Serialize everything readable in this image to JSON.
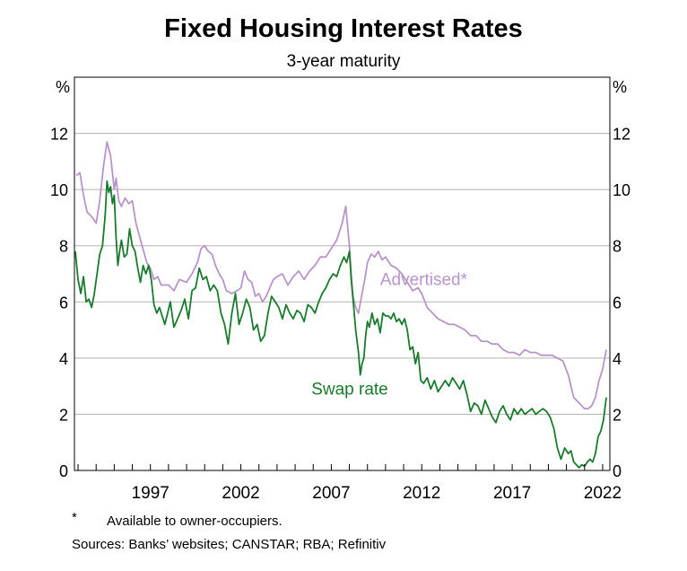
{
  "chart_data": {
    "type": "line",
    "title": "Fixed Housing Interest Rates",
    "subtitle": "3-year maturity",
    "ylabel_left": "%",
    "ylabel_right": "%",
    "ylim": [
      0,
      14
    ],
    "yticks": [
      0,
      2,
      4,
      6,
      8,
      10,
      12
    ],
    "xlim": [
      1992.8,
      2022.4
    ],
    "xticks": [
      1997,
      2002,
      2007,
      2012,
      2017,
      2022
    ],
    "grid": true,
    "colors": {
      "advertised": "#b895c9",
      "swap": "#1a7a2e",
      "grid": "#b3b3b3"
    },
    "series": [
      {
        "name": "Advertised*",
        "color": "#b895c9",
        "x": [
          1992.9,
          1993.1,
          1993.3,
          1993.5,
          1993.8,
          1994.0,
          1994.2,
          1994.4,
          1994.6,
          1994.8,
          1995.0,
          1995.1,
          1995.25,
          1995.4,
          1995.6,
          1995.8,
          1996.0,
          1996.2,
          1996.5,
          1996.8,
          1997.0,
          1997.2,
          1997.4,
          1997.6,
          1997.8,
          1998.0,
          1998.3,
          1998.6,
          1999.0,
          1999.3,
          1999.6,
          1999.8,
          2000.0,
          2000.2,
          2000.4,
          2000.6,
          2000.8,
          2001.0,
          2001.2,
          2001.5,
          2001.8,
          2002.0,
          2002.2,
          2002.4,
          2002.6,
          2002.8,
          2003.0,
          2003.2,
          2003.4,
          2003.6,
          2003.8,
          2004.0,
          2004.3,
          2004.6,
          2004.9,
          2005.2,
          2005.5,
          2005.8,
          2006.1,
          2006.4,
          2006.7,
          2007.0,
          2007.3,
          2007.6,
          2007.8,
          2008.0,
          2008.1,
          2008.2,
          2008.35,
          2008.5,
          2008.7,
          2008.85,
          2009.0,
          2009.2,
          2009.4,
          2009.6,
          2009.8,
          2010.0,
          2010.3,
          2010.6,
          2010.9,
          2011.2,
          2011.5,
          2011.8,
          2012.0,
          2012.3,
          2012.6,
          2012.9,
          2013.2,
          2013.5,
          2013.8,
          2014.1,
          2014.4,
          2014.7,
          2015.0,
          2015.3,
          2015.6,
          2015.9,
          2016.2,
          2016.5,
          2016.8,
          2017.1,
          2017.4,
          2017.7,
          2018.0,
          2018.3,
          2018.6,
          2018.9,
          2019.2,
          2019.5,
          2019.8,
          2020.1,
          2020.4,
          2020.7,
          2021.0,
          2021.2,
          2021.4,
          2021.6,
          2021.8,
          2022.0,
          2022.2
        ],
        "values": [
          10.5,
          10.6,
          9.8,
          9.2,
          9.0,
          8.8,
          9.6,
          10.8,
          11.7,
          11.2,
          10.0,
          10.4,
          9.6,
          9.4,
          9.7,
          9.5,
          9.6,
          8.8,
          8.1,
          7.4,
          7.2,
          6.8,
          6.9,
          6.6,
          6.6,
          6.6,
          6.4,
          6.8,
          6.7,
          7.0,
          7.4,
          7.9,
          8.0,
          7.8,
          7.7,
          7.3,
          7.0,
          6.8,
          6.4,
          6.3,
          6.4,
          6.5,
          7.1,
          6.8,
          6.7,
          6.2,
          6.3,
          6.0,
          6.2,
          6.5,
          6.8,
          6.9,
          7.0,
          6.6,
          6.9,
          7.1,
          6.8,
          7.1,
          7.3,
          7.6,
          7.6,
          7.9,
          8.2,
          8.8,
          9.4,
          8.0,
          7.0,
          6.2,
          5.8,
          5.6,
          6.3,
          6.8,
          7.4,
          7.7,
          7.6,
          7.8,
          7.5,
          7.6,
          7.3,
          7.2,
          7.0,
          6.7,
          6.4,
          6.5,
          6.3,
          5.8,
          5.6,
          5.4,
          5.3,
          5.2,
          5.2,
          5.1,
          5.0,
          4.8,
          4.8,
          4.6,
          4.6,
          4.5,
          4.5,
          4.3,
          4.2,
          4.2,
          4.1,
          4.3,
          4.2,
          4.2,
          4.1,
          4.1,
          4.1,
          4.0,
          3.9,
          3.4,
          2.6,
          2.4,
          2.2,
          2.2,
          2.3,
          2.6,
          3.2,
          3.6,
          4.3
        ]
      },
      {
        "name": "Swap rate",
        "color": "#1a7a2e",
        "x": [
          1992.85,
          1993.0,
          1993.15,
          1993.3,
          1993.45,
          1993.6,
          1993.75,
          1993.9,
          1994.05,
          1994.2,
          1994.35,
          1994.5,
          1994.6,
          1994.7,
          1994.8,
          1994.9,
          1995.0,
          1995.1,
          1995.2,
          1995.3,
          1995.4,
          1995.55,
          1995.7,
          1995.85,
          1996.0,
          1996.15,
          1996.3,
          1996.45,
          1996.6,
          1996.75,
          1996.9,
          1997.05,
          1997.2,
          1997.35,
          1997.5,
          1997.65,
          1997.8,
          1997.95,
          1998.1,
          1998.3,
          1998.5,
          1998.7,
          1998.9,
          1999.1,
          1999.3,
          1999.5,
          1999.7,
          1999.9,
          2000.1,
          2000.3,
          2000.5,
          2000.7,
          2000.9,
          2001.1,
          2001.3,
          2001.5,
          2001.7,
          2001.9,
          2002.1,
          2002.3,
          2002.5,
          2002.7,
          2002.9,
          2003.1,
          2003.3,
          2003.5,
          2003.7,
          2003.9,
          2004.1,
          2004.3,
          2004.5,
          2004.7,
          2004.9,
          2005.1,
          2005.3,
          2005.5,
          2005.7,
          2005.9,
          2006.1,
          2006.3,
          2006.5,
          2006.7,
          2006.9,
          2007.1,
          2007.3,
          2007.5,
          2007.7,
          2007.85,
          2008.0,
          2008.1,
          2008.2,
          2008.35,
          2008.5,
          2008.6,
          2008.7,
          2008.8,
          2008.9,
          2009.0,
          2009.1,
          2009.25,
          2009.4,
          2009.55,
          2009.7,
          2009.85,
          2010.0,
          2010.15,
          2010.3,
          2010.45,
          2010.6,
          2010.75,
          2010.9,
          2011.05,
          2011.2,
          2011.35,
          2011.5,
          2011.65,
          2011.8,
          2011.95,
          2012.1,
          2012.3,
          2012.5,
          2012.7,
          2012.9,
          2013.1,
          2013.3,
          2013.5,
          2013.7,
          2013.9,
          2014.1,
          2014.3,
          2014.5,
          2014.7,
          2014.9,
          2015.1,
          2015.3,
          2015.5,
          2015.7,
          2015.9,
          2016.1,
          2016.3,
          2016.5,
          2016.7,
          2016.9,
          2017.1,
          2017.3,
          2017.5,
          2017.7,
          2017.9,
          2018.1,
          2018.3,
          2018.5,
          2018.7,
          2018.9,
          2019.1,
          2019.3,
          2019.5,
          2019.7,
          2019.9,
          2020.1,
          2020.25,
          2020.4,
          2020.55,
          2020.7,
          2020.85,
          2021.0,
          2021.15,
          2021.3,
          2021.45,
          2021.6,
          2021.75,
          2021.9,
          2022.05,
          2022.2
        ],
        "values": [
          7.8,
          6.8,
          6.3,
          6.9,
          6.0,
          6.1,
          5.8,
          6.3,
          7.0,
          7.7,
          8.0,
          9.1,
          10.3,
          9.9,
          10.1,
          9.5,
          9.8,
          8.3,
          7.3,
          7.8,
          8.2,
          7.6,
          7.7,
          8.6,
          8.0,
          7.8,
          7.2,
          6.7,
          7.3,
          7.0,
          7.3,
          6.8,
          5.9,
          5.6,
          5.8,
          5.5,
          5.2,
          5.6,
          6.0,
          5.1,
          5.4,
          5.7,
          6.1,
          5.4,
          6.4,
          6.5,
          7.2,
          6.8,
          6.9,
          6.4,
          6.6,
          6.4,
          5.6,
          5.2,
          4.5,
          5.6,
          6.3,
          5.2,
          5.6,
          6.1,
          5.8,
          5.0,
          5.2,
          4.6,
          4.8,
          5.6,
          6.2,
          6.0,
          5.8,
          5.4,
          5.9,
          5.6,
          5.4,
          5.7,
          5.6,
          5.3,
          5.9,
          5.8,
          5.6,
          6.0,
          6.3,
          6.5,
          6.8,
          7.0,
          6.9,
          7.3,
          7.6,
          7.4,
          7.8,
          6.8,
          6.1,
          5.0,
          4.2,
          3.4,
          3.8,
          4.0,
          4.8,
          5.3,
          5.1,
          5.6,
          5.2,
          5.4,
          4.9,
          5.6,
          5.5,
          5.5,
          5.4,
          5.6,
          5.3,
          5.4,
          5.2,
          5.4,
          5.0,
          4.3,
          4.4,
          3.8,
          4.2,
          3.2,
          3.1,
          3.3,
          2.9,
          3.2,
          2.8,
          3.0,
          3.2,
          3.0,
          3.3,
          3.1,
          2.9,
          3.2,
          2.7,
          2.1,
          2.4,
          2.3,
          2.0,
          2.5,
          2.2,
          1.9,
          1.7,
          2.1,
          2.3,
          2.0,
          1.8,
          2.2,
          2.0,
          2.2,
          2.0,
          2.1,
          2.2,
          2.0,
          2.1,
          2.2,
          2.1,
          1.9,
          1.5,
          0.8,
          0.4,
          0.8,
          0.6,
          0.7,
          0.3,
          0.2,
          0.1,
          0.2,
          0.15,
          0.3,
          0.4,
          0.3,
          0.6,
          1.2,
          1.4,
          1.8,
          2.6
        ]
      }
    ],
    "annotations": [
      {
        "text": "Advertised*",
        "x": 2009.7,
        "y": 6.6,
        "series": "Advertised*"
      },
      {
        "text": "Swap rate",
        "x": 2005.9,
        "y": 2.7,
        "series": "Swap rate"
      }
    ]
  },
  "footnote": {
    "marker": "*",
    "text": "Available to owner-occupiers."
  },
  "sources": "Sources: Banks’ websites; CANSTAR; RBA; Refinitiv"
}
